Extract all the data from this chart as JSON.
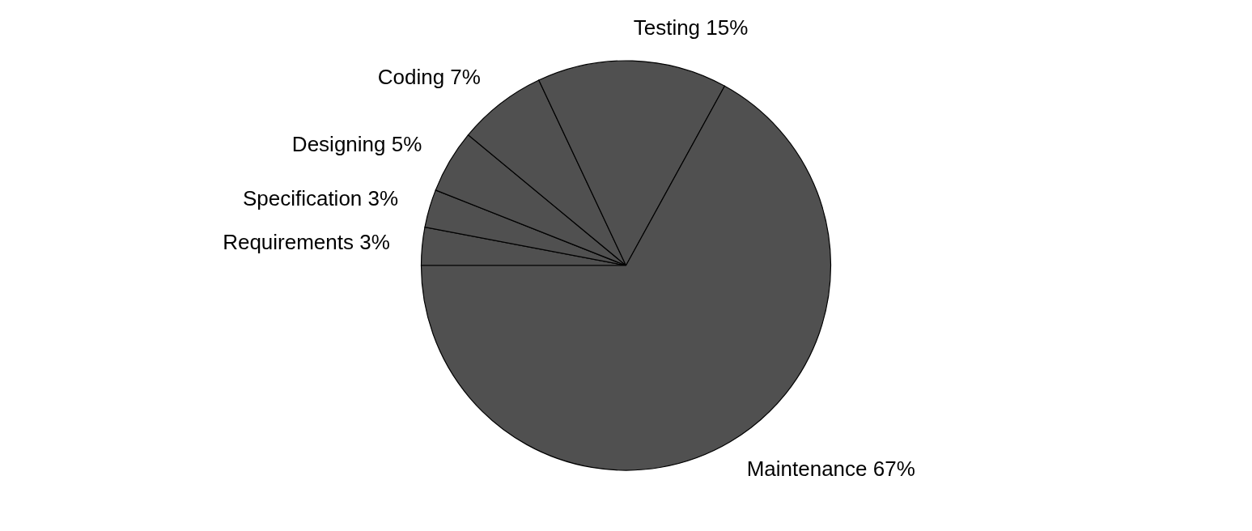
{
  "chart_data": {
    "type": "pie",
    "categories": [
      "Requirements",
      "Specification",
      "Designing",
      "Coding",
      "Testing",
      "Maintenance"
    ],
    "values": [
      3,
      3,
      5,
      7,
      15,
      67
    ],
    "value_labels": [
      "3%",
      "3%",
      "5%",
      "7%",
      "15%",
      "67%"
    ],
    "colors": [
      "#505050",
      "#505050",
      "#505050",
      "#505050",
      "#505050",
      "#505050"
    ]
  }
}
